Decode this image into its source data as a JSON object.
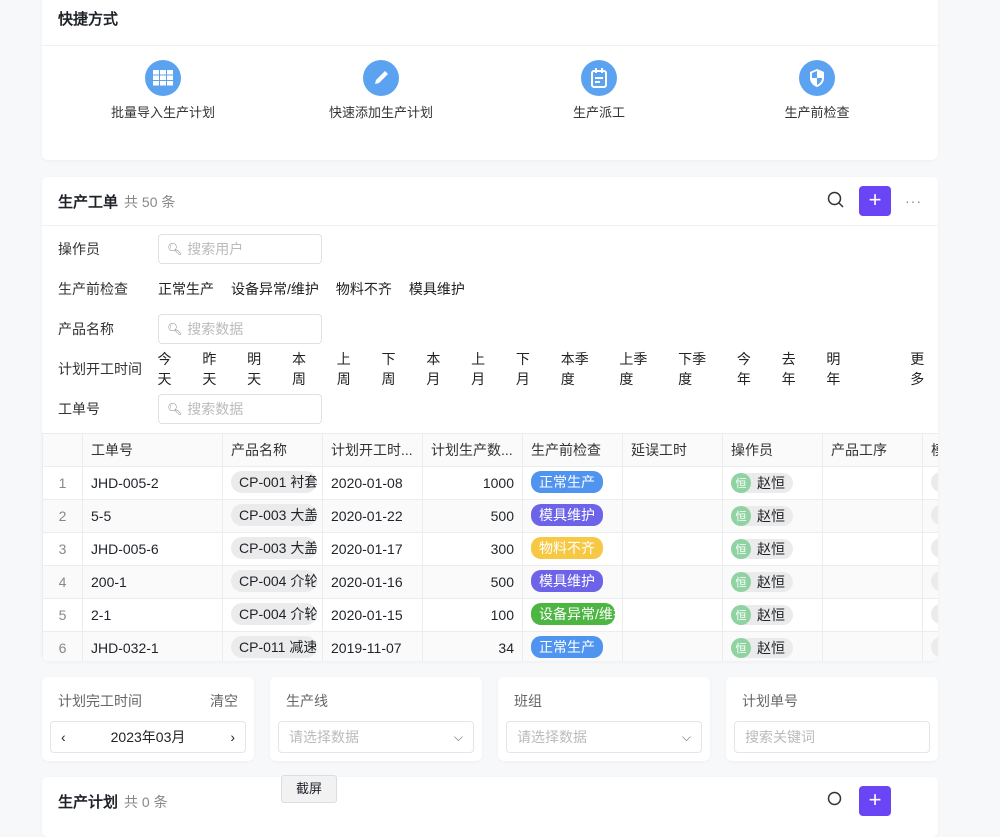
{
  "shortcuts": {
    "title": "快捷方式",
    "items": [
      {
        "label": "批量导入生产计划",
        "icon": "grid-icon"
      },
      {
        "label": "快速添加生产计划",
        "icon": "pencil-icon"
      },
      {
        "label": "生产派工",
        "icon": "calendar-icon"
      },
      {
        "label": "生产前检查",
        "icon": "shield-icon"
      }
    ]
  },
  "orders": {
    "title": "生产工单",
    "count": "共 50 条",
    "filters": {
      "operator_label": "操作员",
      "operator_placeholder": "搜索用户",
      "check_label": "生产前检查",
      "check_options": [
        "正常生产",
        "设备异常/维护",
        "物料不齐",
        "模具维护"
      ],
      "product_label": "产品名称",
      "product_placeholder": "搜索数据",
      "time_label": "计划开工时间",
      "time_options": [
        "今天",
        "昨天",
        "明天",
        "本周",
        "上周",
        "下周",
        "本月",
        "上月",
        "下月",
        "本季度",
        "上季度",
        "下季度",
        "今年",
        "去年",
        "明年"
      ],
      "time_more": "更多",
      "order_label": "工单号",
      "order_placeholder": "搜索数据"
    },
    "columns": [
      "",
      "工单号",
      "产品名称",
      "计划开工时...",
      "计划生产数...",
      "生产前检查",
      "延误工时",
      "操作员",
      "产品工序",
      "模"
    ],
    "rows": [
      {
        "no": "1",
        "id": "JHD-005-2",
        "product": "CP-001 衬套",
        "date": "2020-01-08",
        "qty": "1000",
        "check": "正常生产",
        "color": "#4f94ef",
        "op": "赵恒",
        "av": "恒"
      },
      {
        "no": "2",
        "id": "5-5",
        "product": "CP-003 大盖",
        "date": "2020-01-22",
        "qty": "500",
        "check": "模具维护",
        "color": "#6d63e8",
        "op": "赵恒",
        "av": "恒"
      },
      {
        "no": "3",
        "id": "JHD-005-6",
        "product": "CP-003 大盖",
        "date": "2020-01-17",
        "qty": "300",
        "check": "物料不齐",
        "color": "#f7c843",
        "op": "赵恒",
        "av": "恒"
      },
      {
        "no": "4",
        "id": "200-1",
        "product": "CP-004 介轮",
        "date": "2020-01-16",
        "qty": "500",
        "check": "模具维护",
        "color": "#6d63e8",
        "op": "赵恒",
        "av": "恒"
      },
      {
        "no": "5",
        "id": "2-1",
        "product": "CP-004 介轮",
        "date": "2020-01-15",
        "qty": "100",
        "check": "设备异常/维护",
        "color": "#4db541",
        "op": "赵恒",
        "av": "恒"
      },
      {
        "no": "6",
        "id": "JHD-032-1",
        "product": "CP-011 减速",
        "date": "2019-11-07",
        "qty": "34",
        "check": "正常生产",
        "color": "#4f94ef",
        "op": "赵恒",
        "av": "恒"
      }
    ]
  },
  "bottom_filters": {
    "finish_label": "计划完工时间",
    "clear": "清空",
    "month": "2023年03月",
    "line_label": "生产线",
    "line_placeholder": "请选择数据",
    "team_label": "班组",
    "team_placeholder": "请选择数据",
    "plan_label": "计划单号",
    "plan_placeholder": "搜索关键词"
  },
  "plans": {
    "title": "生产计划",
    "count": "共 0 条"
  },
  "screenshot_label": "截屏"
}
